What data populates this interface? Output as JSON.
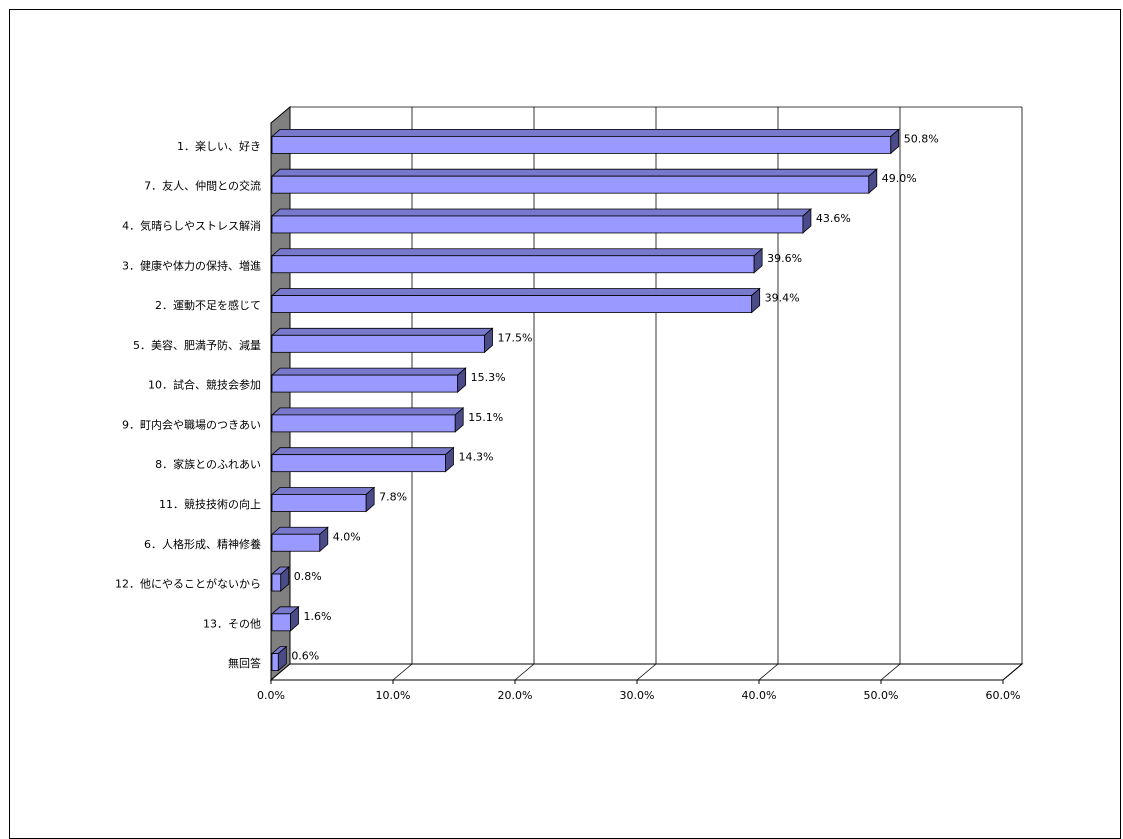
{
  "chart_data": {
    "type": "bar",
    "orientation": "horizontal",
    "three_d": true,
    "categories": [
      "1．楽しい、好き",
      "7．友人、仲間との交流",
      "4．気晴らしやストレス解消",
      "3．健康や体力の保持、増進",
      "2．運動不足を感じて",
      "5．美容、肥満予防、減量",
      "10．試合、競技会参加",
      "9．町内会や職場のつきあい",
      "8．家族とのふれあい",
      "11．競技技術の向上",
      "6．人格形成、精神修養",
      "12．他にやることがないから",
      "13．その他",
      "無回答"
    ],
    "values": [
      50.8,
      49.0,
      43.6,
      39.6,
      39.4,
      17.5,
      15.3,
      15.1,
      14.3,
      7.8,
      4.0,
      0.8,
      1.6,
      0.6
    ],
    "data_labels": [
      "50.8%",
      "49.0%",
      "43.6%",
      "39.6%",
      "39.4%",
      "17.5%",
      "15.3%",
      "15.1%",
      "14.3%",
      "7.8%",
      "4.0%",
      "0.8%",
      "1.6%",
      "0.6%"
    ],
    "xlim": [
      0,
      60
    ],
    "x_ticks": [
      0,
      10,
      20,
      30,
      40,
      50,
      60
    ],
    "x_tick_labels": [
      "0.0%",
      "10.0%",
      "20.0%",
      "30.0%",
      "40.0%",
      "50.0%",
      "60.0%"
    ],
    "grid": true,
    "legend": "none",
    "title": "",
    "xlabel": "",
    "ylabel": "",
    "colors": {
      "bar_face": "#9999FF",
      "bar_top": "#7878CC",
      "bar_side": "#4B4B8A",
      "bar_edge": "#000000",
      "wall": "#808080",
      "gridline": "#000000"
    }
  }
}
